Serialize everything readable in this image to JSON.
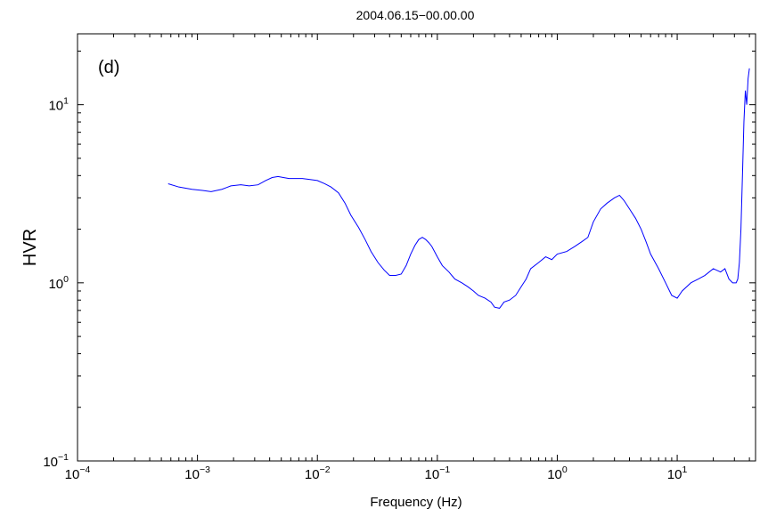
{
  "chart_data": {
    "type": "line",
    "title": "2004.06.15−00.00.00",
    "panel_label": "(d)",
    "xlabel": "Frequency (Hz)",
    "ylabel": "HVR",
    "x_scale": "log",
    "y_scale": "log",
    "xlim": [
      0.0001,
      45
    ],
    "ylim": [
      0.1,
      25
    ],
    "grid": false,
    "line_color": "#0000ff",
    "x_ticks": [
      {
        "value": 0.0001,
        "base": "10",
        "exp": "−4"
      },
      {
        "value": 0.001,
        "base": "10",
        "exp": "−3"
      },
      {
        "value": 0.01,
        "base": "10",
        "exp": "−2"
      },
      {
        "value": 0.1,
        "base": "10",
        "exp": "−1"
      },
      {
        "value": 1,
        "base": "10",
        "exp": "0"
      },
      {
        "value": 10,
        "base": "10",
        "exp": "1"
      }
    ],
    "y_ticks": [
      {
        "value": 0.1,
        "base": "10",
        "exp": "−1"
      },
      {
        "value": 1,
        "base": "10",
        "exp": "0"
      },
      {
        "value": 10,
        "base": "10",
        "exp": "1"
      }
    ],
    "series": [
      {
        "x": [
          0.00057,
          0.0007,
          0.0009,
          0.0011,
          0.0013,
          0.0016,
          0.0019,
          0.0023,
          0.0027,
          0.0032,
          0.0037,
          0.0042,
          0.0047,
          0.0052,
          0.0058,
          0.0065,
          0.0075,
          0.0087,
          0.01,
          0.0115,
          0.013,
          0.015,
          0.017,
          0.019,
          0.022,
          0.025,
          0.028,
          0.032,
          0.036,
          0.04,
          0.045,
          0.05,
          0.055,
          0.06,
          0.065,
          0.07,
          0.075,
          0.08,
          0.085,
          0.09,
          0.1,
          0.11,
          0.125,
          0.14,
          0.16,
          0.18,
          0.2,
          0.22,
          0.25,
          0.28,
          0.3,
          0.33,
          0.36,
          0.4,
          0.45,
          0.5,
          0.55,
          0.6,
          0.7,
          0.8,
          0.9,
          1.0,
          1.2,
          1.4,
          1.6,
          1.8,
          2.0,
          2.3,
          2.6,
          3.0,
          3.3,
          3.6,
          4.0,
          4.5,
          5.0,
          5.5,
          6.0,
          7.0,
          8.0,
          9.0,
          10.0,
          11.0,
          13.0,
          15.0,
          17.0,
          20.0,
          23.0,
          25.0,
          27.0,
          29.0,
          31.0,
          32.0,
          33.0,
          34.0,
          35.0,
          36.0,
          37.0,
          38.0,
          39.0,
          40.0
        ],
        "y": [
          3.6,
          3.45,
          3.35,
          3.3,
          3.25,
          3.35,
          3.5,
          3.55,
          3.5,
          3.55,
          3.75,
          3.9,
          3.95,
          3.9,
          3.85,
          3.85,
          3.85,
          3.8,
          3.75,
          3.6,
          3.45,
          3.2,
          2.8,
          2.4,
          2.05,
          1.75,
          1.5,
          1.3,
          1.18,
          1.1,
          1.1,
          1.12,
          1.25,
          1.45,
          1.62,
          1.75,
          1.8,
          1.75,
          1.68,
          1.6,
          1.4,
          1.25,
          1.15,
          1.05,
          1.0,
          0.95,
          0.9,
          0.85,
          0.82,
          0.78,
          0.73,
          0.72,
          0.78,
          0.8,
          0.85,
          0.95,
          1.05,
          1.2,
          1.3,
          1.4,
          1.35,
          1.45,
          1.5,
          1.6,
          1.7,
          1.8,
          2.2,
          2.6,
          2.8,
          3.0,
          3.1,
          2.9,
          2.6,
          2.3,
          2.0,
          1.7,
          1.45,
          1.2,
          1.0,
          0.85,
          0.82,
          0.9,
          1.0,
          1.05,
          1.1,
          1.2,
          1.15,
          1.2,
          1.05,
          1.0,
          1.0,
          1.05,
          1.3,
          2.0,
          4.0,
          8.0,
          12.0,
          10.0,
          14.0,
          16.0
        ]
      }
    ]
  }
}
